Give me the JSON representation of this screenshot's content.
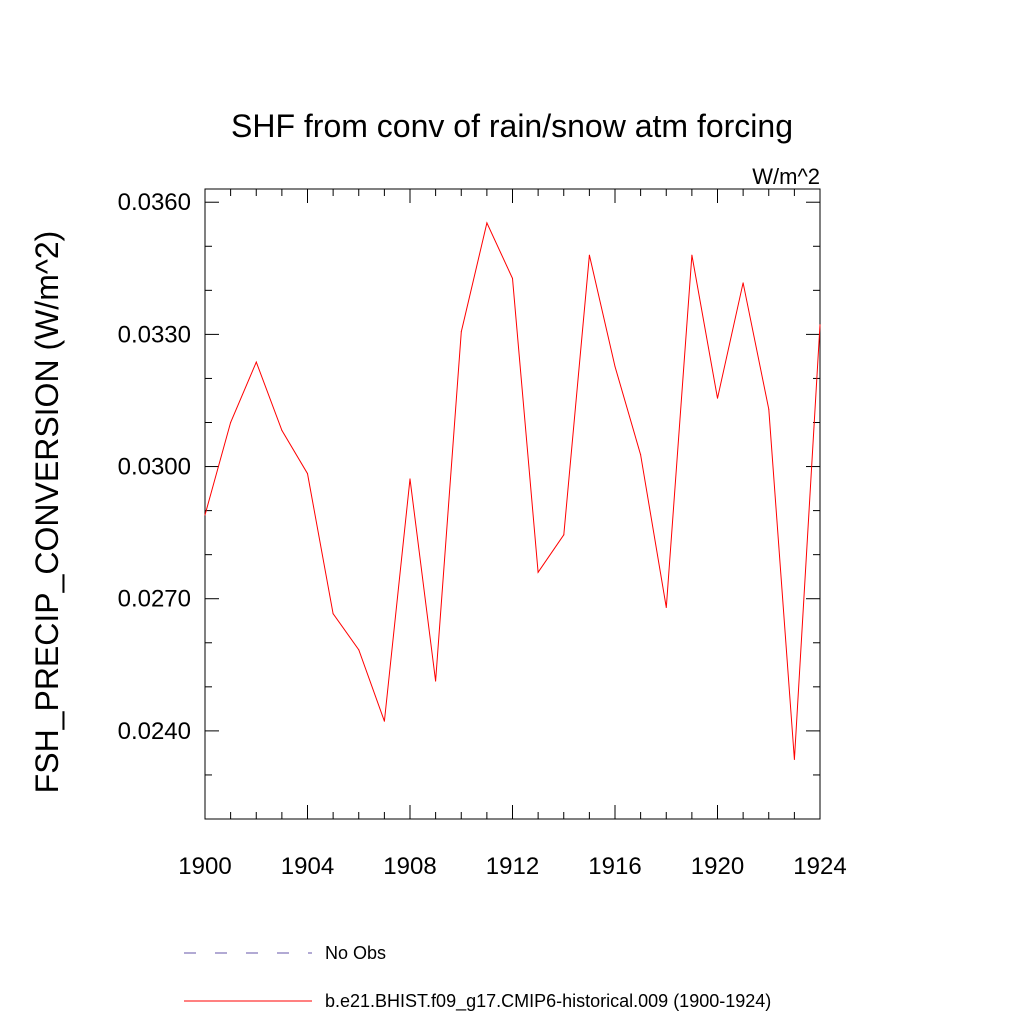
{
  "chart_data": {
    "type": "line",
    "title": "SHF from conv of rain/snow atm forcing",
    "units": "W/m^2",
    "ylabel": "FSH_PRECIP_CONVERSION  (W/m^2)",
    "xlabel": "",
    "xlim": [
      1900,
      1924
    ],
    "ylim": [
      0.022,
      0.0363
    ],
    "x_ticks": [
      1900,
      1904,
      1908,
      1912,
      1916,
      1920,
      1924
    ],
    "x_tick_labels": [
      "1900",
      "1904",
      "1908",
      "1912",
      "1916",
      "1920",
      "1924"
    ],
    "y_ticks": [
      0.024,
      0.027,
      0.03,
      0.033,
      0.036
    ],
    "y_tick_labels": [
      "0.0240",
      "0.0270",
      "0.0300",
      "0.0330",
      "0.0360"
    ],
    "grid": false,
    "legend_position": "bottom",
    "series": [
      {
        "name": "b.e21.BHIST.f09_g17.CMIP6-historical.009 (1900-1924)",
        "color": "#ff0000",
        "style": "solid",
        "x": [
          1900,
          1901,
          1902,
          1903,
          1904,
          1905,
          1906,
          1907,
          1908,
          1909,
          1910,
          1911,
          1912,
          1913,
          1914,
          1915,
          1916,
          1917,
          1918,
          1919,
          1920,
          1921,
          1922,
          1923,
          1924
        ],
        "y": [
          0.0289,
          0.031,
          0.03237,
          0.03082,
          0.02984,
          0.02666,
          0.02584,
          0.02422,
          0.02972,
          0.02513,
          0.03306,
          0.03553,
          0.03427,
          0.0276,
          0.02845,
          0.0348,
          0.03227,
          0.03027,
          0.0268,
          0.0348,
          0.03155,
          0.03417,
          0.0313,
          0.02335,
          0.03322
        ]
      }
    ],
    "legend": [
      {
        "label": "No Obs",
        "color": "#6655aa",
        "style": "dashed"
      },
      {
        "label": "b.e21.BHIST.f09_g17.CMIP6-historical.009 (1900-1924)",
        "color": "#ff0000",
        "style": "solid"
      }
    ]
  }
}
